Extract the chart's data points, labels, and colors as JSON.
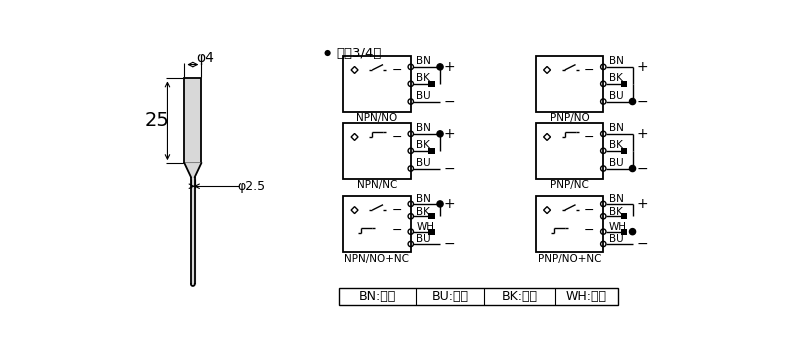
{
  "bg_color": "#ffffff",
  "line_color": "#000000",
  "title_text": "直入3/4线",
  "dim_phi4": "φ4",
  "dim_25": "25",
  "dim_phi25": "φ2.5",
  "legend_items": [
    "BN:棕色",
    "BU:兰色",
    "BK:黑色",
    "WH:白色"
  ]
}
